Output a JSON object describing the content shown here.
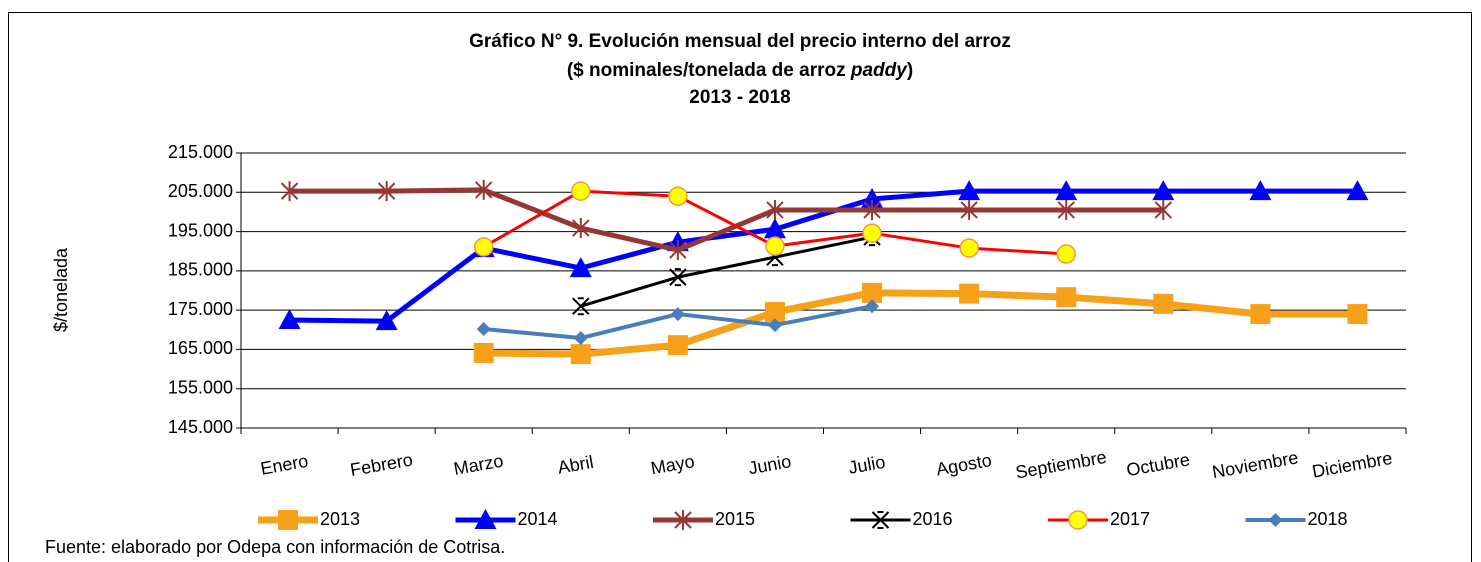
{
  "chart_data": {
    "type": "line",
    "title_lines": [
      "Gráfico N° 9. Evolución mensual del precio interno del arroz",
      [
        "($ nominales/tonelada de arroz",
        "paddy",
        ")"
      ],
      "2013 - 2018"
    ],
    "y_label": "$/tonelada",
    "source": "Fuente: elaborado por Odepa con información de Cotrisa.",
    "categories": [
      "Enero",
      "Febrero",
      "Marzo",
      "Abril",
      "Mayo",
      "Junio",
      "Julio",
      "Agosto",
      "Septiembre",
      "Octubre",
      "Noviembre",
      "Diciembre"
    ],
    "ylim": [
      145000,
      215000
    ],
    "yticks": [
      {
        "value": 145000,
        "label": "145.000"
      },
      {
        "value": 155000,
        "label": "155.000"
      },
      {
        "value": 165000,
        "label": "165.000"
      },
      {
        "value": 175000,
        "label": "175.000"
      },
      {
        "value": 185000,
        "label": "185.000"
      },
      {
        "value": 195000,
        "label": "195.000"
      },
      {
        "value": 205000,
        "label": "205.000"
      },
      {
        "value": 215000,
        "label": "215.000"
      }
    ],
    "grid": true,
    "legend": "bottom",
    "series": [
      {
        "name": "2013",
        "color": "#f7a11a",
        "marker": "square",
        "values": [
          null,
          null,
          164100,
          163800,
          166100,
          174500,
          179400,
          179200,
          178300,
          176600,
          174000,
          174000
        ]
      },
      {
        "name": "2014",
        "color": "#0000ff",
        "marker": "triangle",
        "values": [
          172500,
          172200,
          190800,
          185700,
          192300,
          195600,
          203300,
          205300,
          205300,
          205300,
          205300,
          205300
        ]
      },
      {
        "name": "2015",
        "color": "#953735",
        "marker": "asterisk",
        "values": [
          205300,
          205300,
          205600,
          195900,
          190300,
          200500,
          200500,
          200500,
          200500,
          200500,
          null,
          null
        ]
      },
      {
        "name": "2016",
        "color": "#000000",
        "marker": "xstar",
        "values": [
          null,
          null,
          null,
          176000,
          183400,
          188500,
          193600,
          null,
          null,
          null,
          null,
          null
        ]
      },
      {
        "name": "2017",
        "color": "#ff0000",
        "marker": "circle",
        "marker_fill": "#ffff00",
        "marker_stroke": "#f79646",
        "values": [
          null,
          null,
          191100,
          205300,
          204000,
          191300,
          194600,
          190800,
          189300,
          null,
          null,
          null
        ]
      },
      {
        "name": "2018",
        "color": "#4a7ebb",
        "marker": "diamond",
        "values": [
          null,
          null,
          170200,
          167900,
          174000,
          171200,
          176000,
          null,
          null,
          null,
          null,
          null
        ]
      }
    ]
  }
}
